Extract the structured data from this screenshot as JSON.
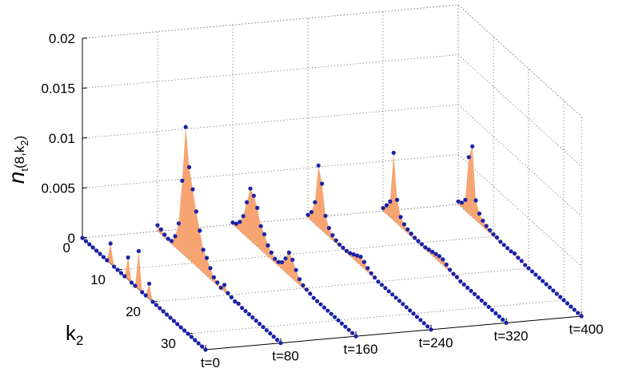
{
  "chart_data": {
    "type": "waterfall-3d",
    "title": "",
    "zlabel": {
      "base": "n",
      "subscript": "t",
      "paren": "(8,k",
      "sub2": "2",
      "close": ")"
    },
    "ylabel": {
      "base": "k",
      "subscript": "2"
    },
    "zlim": [
      0,
      0.02
    ],
    "z_ticks": [
      "0",
      "0.005",
      "0.01",
      "0.015",
      "0.02"
    ],
    "z_tick_values": [
      0,
      0.005,
      0.01,
      0.015,
      0.02
    ],
    "k_ticks": [
      "0",
      "10",
      "20",
      "30"
    ],
    "k_tick_values": [
      0,
      10,
      20,
      30
    ],
    "k_range": [
      0,
      35
    ],
    "grid": true,
    "fill_color": "#F6A572",
    "marker_color": "#1A22A8",
    "series": [
      {
        "name": "t=0",
        "time": 0,
        "k": [
          0,
          1,
          2,
          3,
          4,
          5,
          6,
          7,
          8,
          9,
          10,
          11,
          12,
          13,
          14,
          15,
          16,
          17,
          18,
          19,
          20,
          21,
          22,
          23,
          24,
          25,
          26,
          27,
          28,
          29,
          30,
          31,
          32,
          33,
          34,
          35
        ],
        "values": [
          0,
          0,
          0,
          0,
          0,
          0,
          0,
          0,
          0.002,
          0,
          0,
          0,
          0,
          0.0022,
          0,
          0,
          0.0038,
          0,
          0,
          0.0015,
          0,
          0,
          0,
          0,
          0,
          0,
          0,
          0,
          0,
          0,
          0,
          0,
          0,
          0,
          0,
          0
        ]
      },
      {
        "name": "t=80",
        "time": 80,
        "k": [
          0,
          1,
          2,
          3,
          4,
          5,
          6,
          7,
          8,
          9,
          10,
          11,
          12,
          13,
          14,
          15,
          16,
          17,
          18,
          19,
          20,
          21,
          22,
          23,
          24,
          25,
          26,
          27,
          28,
          29,
          30,
          31,
          32,
          33,
          34,
          35
        ],
        "values": [
          0.0006,
          0.0005,
          0.0003,
          0.0002,
          0.0003,
          0.0011,
          0.0027,
          0.0073,
          0.013,
          0.0093,
          0.0074,
          0.0055,
          0.0039,
          0.0023,
          0.0018,
          0.0011,
          0.0005,
          0.0003,
          0.0001,
          0.0007,
          0.0002,
          0.0001,
          0,
          0.0001,
          0,
          0,
          0,
          0,
          0,
          0,
          0,
          0,
          0,
          0,
          0,
          0
        ]
      },
      {
        "name": "t=160",
        "time": 160,
        "k": [
          0,
          1,
          2,
          3,
          4,
          5,
          6,
          7,
          8,
          9,
          10,
          11,
          12,
          13,
          14,
          15,
          16,
          17,
          18,
          19,
          20,
          21,
          22,
          23,
          24,
          25,
          26,
          27,
          28,
          29,
          30,
          31,
          32,
          33,
          34,
          35
        ],
        "values": [
          0.0002,
          0.0004,
          0.0009,
          0.0018,
          0.0035,
          0.0052,
          0.0048,
          0.0039,
          0.0024,
          0.0019,
          0.0011,
          0.0007,
          0.0004,
          0.0004,
          0.0007,
          0.0014,
          0.0023,
          0.0019,
          0.0012,
          0.0006,
          0.0003,
          0.0002,
          0.0001,
          0,
          0,
          0,
          0,
          0,
          0,
          0,
          0,
          0,
          0,
          0,
          0,
          0
        ]
      },
      {
        "name": "t=240",
        "time": 240,
        "k": [
          0,
          1,
          2,
          3,
          4,
          5,
          6,
          7,
          8,
          9,
          10,
          11,
          12,
          13,
          14,
          15,
          16,
          17,
          18,
          19,
          20,
          21,
          22,
          23,
          24,
          25,
          26,
          27,
          28,
          29,
          30,
          31,
          32,
          33,
          34,
          35
        ],
        "values": [
          0.0003,
          0.0009,
          0.0022,
          0.0062,
          0.0047,
          0.0018,
          0.0009,
          0.0005,
          0.0003,
          0.0002,
          0.0002,
          0.0002,
          0.0003,
          0.0005,
          0.0007,
          0.0009,
          0.0007,
          0.0004,
          0.0002,
          0.0001,
          0,
          0,
          0,
          0,
          0,
          0,
          0,
          0,
          0,
          0,
          0,
          0,
          0,
          0,
          0,
          0
        ]
      },
      {
        "name": "t=320",
        "time": 320,
        "k": [
          0,
          1,
          2,
          3,
          4,
          5,
          6,
          7,
          8,
          9,
          10,
          11,
          12,
          13,
          14,
          15,
          16,
          17,
          18,
          19,
          20,
          21,
          22,
          23,
          24,
          25,
          26,
          27,
          28,
          29,
          30,
          31,
          32,
          33,
          34,
          35
        ],
        "values": [
          0.0003,
          0.0009,
          0.0016,
          0.0068,
          0.0024,
          0.001,
          0.0006,
          0.0004,
          0.0003,
          0.0002,
          0.0002,
          0.0002,
          0.0002,
          0.0003,
          0.0004,
          0.0005,
          0.0006,
          0.0006,
          0.0004,
          0.0002,
          0.0001,
          0.0001,
          0,
          0,
          0,
          0,
          0,
          0,
          0,
          0,
          0,
          0,
          0,
          0,
          0,
          0
        ]
      },
      {
        "name": "t=400",
        "time": 400,
        "k": [
          0,
          1,
          2,
          3,
          4,
          5,
          6,
          7,
          8,
          9,
          10,
          11,
          12,
          13,
          14,
          15,
          16,
          17,
          18,
          19,
          20,
          21,
          22,
          23,
          24,
          25,
          26,
          27,
          28,
          29,
          30,
          31,
          32,
          33,
          34,
          35
        ],
        "values": [
          0.0003,
          0.0005,
          0.0011,
          0.0057,
          0.0071,
          0.002,
          0.001,
          0.0006,
          0.0004,
          0.0003,
          0.0002,
          0.0002,
          0.0001,
          0.0001,
          0.0001,
          0.0001,
          0.0002,
          0.0001,
          0.0001,
          0,
          0,
          0,
          0,
          0,
          0,
          0,
          0,
          0,
          0,
          0,
          0,
          0,
          0,
          0,
          0,
          0
        ]
      }
    ]
  }
}
